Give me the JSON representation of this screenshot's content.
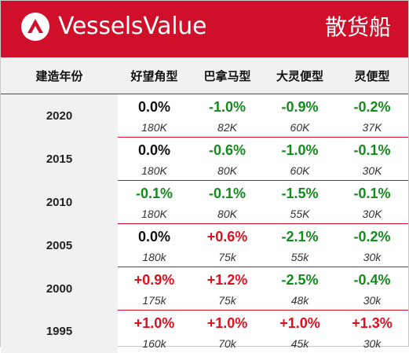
{
  "header": {
    "brand": "VesselsValue",
    "category": "散货船",
    "accent_color": "#d0102a",
    "logo_icon": "vesselsvalue-logo-icon"
  },
  "table": {
    "year_header": "建造年份",
    "columns": [
      "好望角型",
      "巴拿马型",
      "大灵便型",
      "灵便型"
    ],
    "colors": {
      "positive": "#e0101e",
      "negative": "#138c1c",
      "zero": "#111111"
    },
    "rows": [
      {
        "year": "2020",
        "pct": [
          "0.0%",
          "-1.0%",
          "-0.9%",
          "-0.2%"
        ],
        "size": [
          "180K",
          "82K",
          "60K",
          "37K"
        ]
      },
      {
        "year": "2015",
        "pct": [
          "0.0%",
          "-0.6%",
          "-1.0%",
          "-0.1%"
        ],
        "size": [
          "180K",
          "80K",
          "60K",
          "30K"
        ]
      },
      {
        "year": "2010",
        "pct": [
          "-0.1%",
          "-0.1%",
          "-1.5%",
          "-0.1%"
        ],
        "size": [
          "180K",
          "80K",
          "55K",
          "30K"
        ]
      },
      {
        "year": "2005",
        "pct": [
          "0.0%",
          "+0.6%",
          "-2.1%",
          "-0.2%"
        ],
        "size": [
          "180k",
          "75k",
          "55k",
          "30k"
        ]
      },
      {
        "year": "2000",
        "pct": [
          "+0.9%",
          "+1.2%",
          "-2.5%",
          "-0.4%"
        ],
        "size": [
          "175k",
          "75k",
          "48k",
          "30k"
        ]
      },
      {
        "year": "1995",
        "pct": [
          "+1.0%",
          "+1.0%",
          "+1.0%",
          "+1.3%"
        ],
        "size": [
          "160k",
          "70k",
          "45k",
          "30k"
        ]
      }
    ]
  }
}
